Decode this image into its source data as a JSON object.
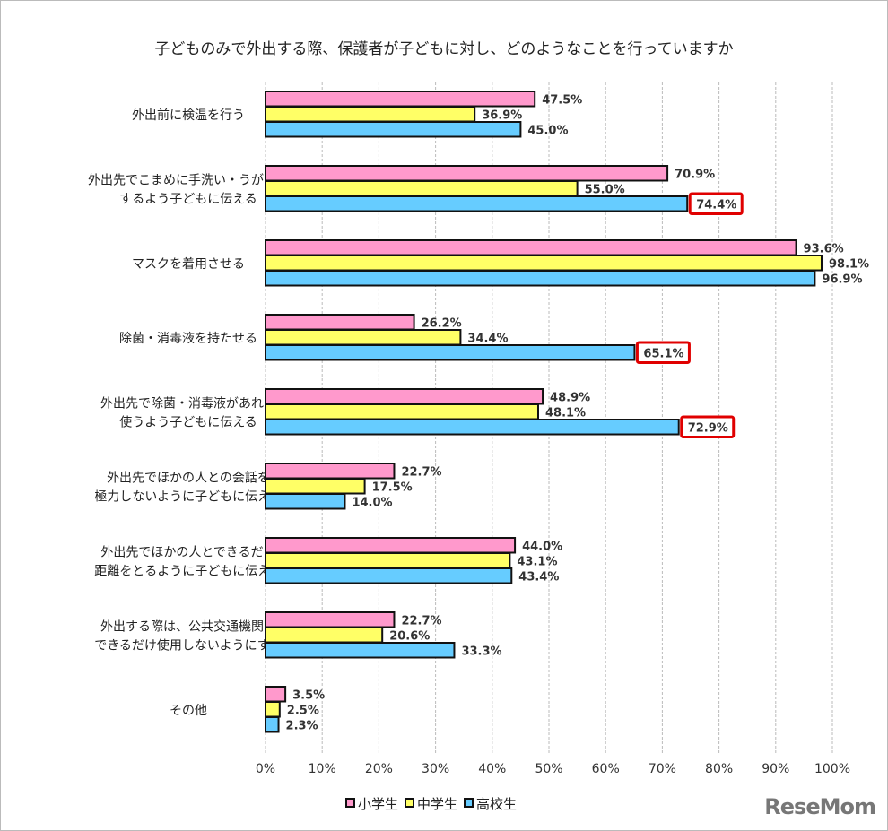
{
  "chart_data": {
    "type": "bar",
    "orientation": "horizontal",
    "title": "子どものみで外出する際、保護者が子どもに対し、どのようなことを行っていますか",
    "categories": [
      [
        "外出前に検温を行う"
      ],
      [
        "外出先でこまめに手洗い・うがいを",
        "するよう子どもに伝える"
      ],
      [
        "マスクを着用させる"
      ],
      [
        "除菌・消毒液を持たせる"
      ],
      [
        "外出先で除菌・消毒液があれば",
        "使うよう子どもに伝える"
      ],
      [
        "外出先でほかの人との会話を",
        "極力しないように子どもに伝える"
      ],
      [
        "外出先でほかの人とできるだけ",
        "距離をとるように子どもに伝える"
      ],
      [
        "外出する際は、公共交通機関を",
        "できるだけ使用しないようにする"
      ],
      [
        "その他"
      ]
    ],
    "series": [
      {
        "name": "小学生",
        "color": "#FF99CC",
        "values": [
          47.5,
          70.9,
          93.6,
          26.2,
          48.9,
          22.7,
          44.0,
          22.7,
          3.5
        ]
      },
      {
        "name": "中学生",
        "color": "#FFFF66",
        "values": [
          36.9,
          55.0,
          98.1,
          34.4,
          48.1,
          17.5,
          43.1,
          20.6,
          2.5
        ]
      },
      {
        "name": "高校生",
        "color": "#66CCFF",
        "values": [
          45.0,
          74.4,
          96.9,
          65.1,
          72.9,
          14.0,
          43.4,
          33.3,
          2.3
        ]
      }
    ],
    "highlighted": [
      {
        "series": 2,
        "category": 1
      },
      {
        "series": 2,
        "category": 3
      },
      {
        "series": 2,
        "category": 4
      }
    ],
    "highlight_color": "#E00000",
    "xlim": [
      0,
      100
    ],
    "xticks": [
      "0%",
      "10%",
      "20%",
      "30%",
      "40%",
      "50%",
      "60%",
      "70%",
      "80%",
      "90%",
      "100%"
    ],
    "grid": true,
    "legend": "bottom"
  },
  "logo": "ReseMom"
}
